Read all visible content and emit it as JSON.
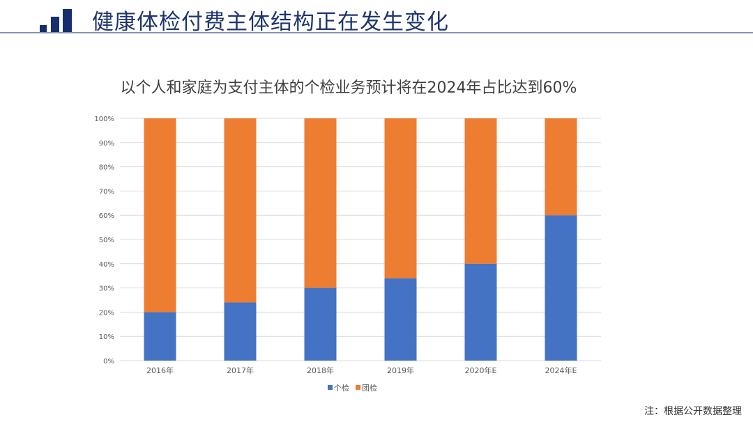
{
  "header": {
    "title": "健康体检付费主体结构正在发生变化"
  },
  "note": "注：根据公开数据整理",
  "chart_data": {
    "type": "bar",
    "stacked": true,
    "title": "以个人和家庭为支付主体的个检业务预计将在2024年占比达到60%",
    "categories": [
      "2016年",
      "2017年",
      "2018年",
      "2019年",
      "2020年E",
      "2024年E"
    ],
    "series": [
      {
        "name": "个检",
        "color": "#4472c4",
        "values": [
          20,
          24,
          30,
          34,
          40,
          60
        ]
      },
      {
        "name": "团检",
        "color": "#ed7d31",
        "values": [
          80,
          76,
          70,
          66,
          60,
          40
        ]
      }
    ],
    "yticks": [
      "0%",
      "10%",
      "20%",
      "30%",
      "40%",
      "50%",
      "60%",
      "70%",
      "80%",
      "90%",
      "100%"
    ],
    "ylim": [
      0,
      100
    ],
    "grid": true,
    "legend": "bottom"
  }
}
